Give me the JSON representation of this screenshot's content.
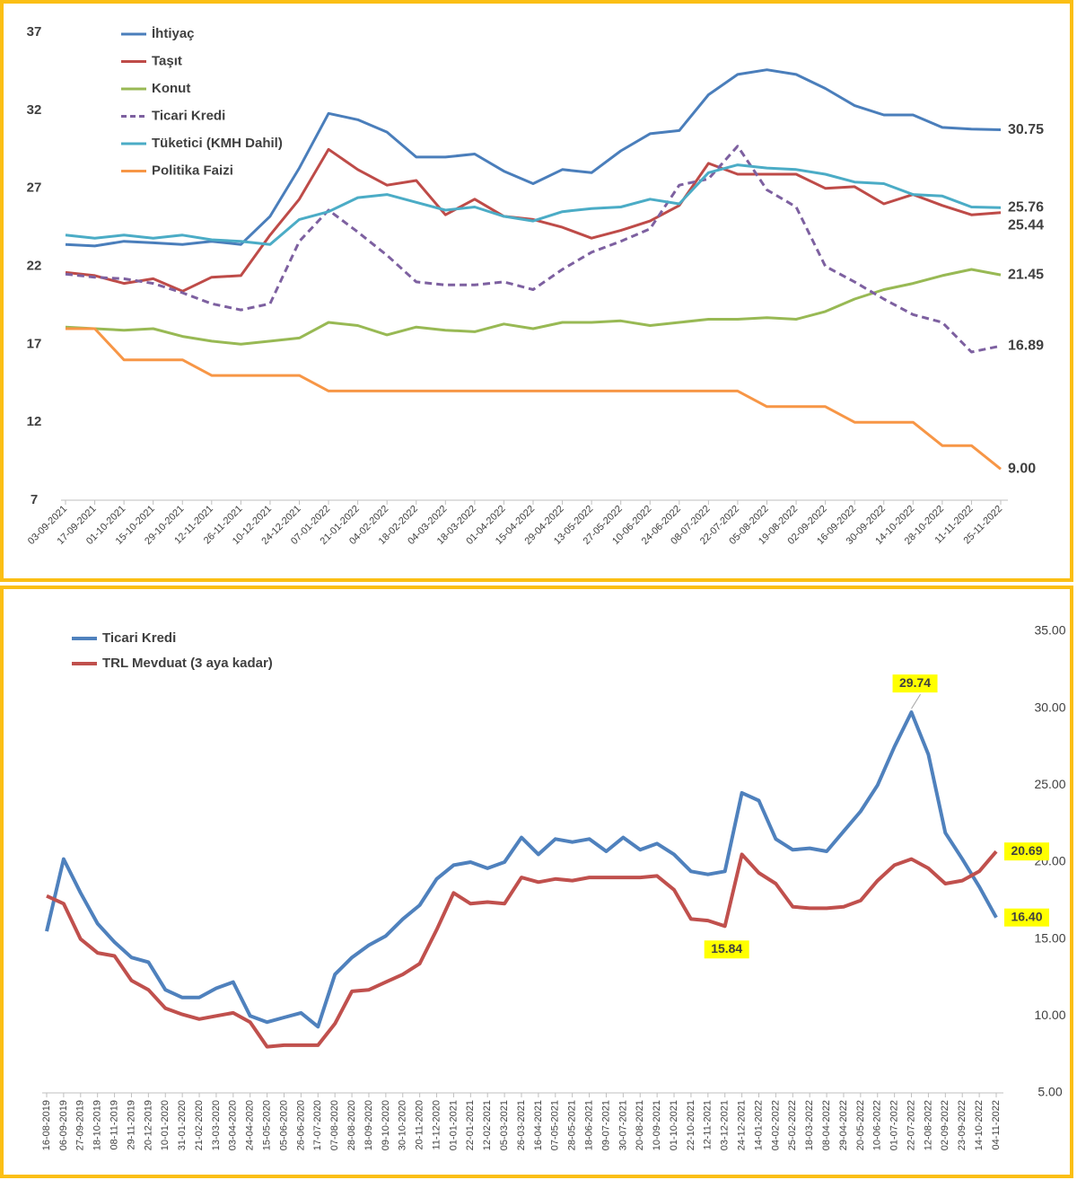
{
  "chart_data": [
    {
      "type": "line",
      "grid": false,
      "legend": "upper-left",
      "categories": [
        "03-09-2021",
        "17-09-2021",
        "01-10-2021",
        "15-10-2021",
        "29-10-2021",
        "12-11-2021",
        "26-11-2021",
        "10-12-2021",
        "24-12-2021",
        "07-01-2022",
        "21-01-2022",
        "04-02-2022",
        "18-02-2022",
        "04-03-2022",
        "18-03-2022",
        "01-04-2022",
        "15-04-2022",
        "29-04-2022",
        "13-05-2022",
        "27-05-2022",
        "10-06-2022",
        "24-06-2022",
        "08-07-2022",
        "22-07-2022",
        "05-08-2022",
        "19-08-2022",
        "02-09-2022",
        "16-09-2022",
        "30-09-2022",
        "14-10-2022",
        "28-10-2022",
        "11-11-2022",
        "25-11-2022"
      ],
      "ylim": [
        7,
        37
      ],
      "yticks": [
        7,
        12,
        17,
        22,
        27,
        32,
        37
      ],
      "series": [
        {
          "name": "İhtiyaç",
          "color": "#4a7ebb",
          "values": [
            23.4,
            23.3,
            23.6,
            23.5,
            23.4,
            23.6,
            23.4,
            25.2,
            28.3,
            31.8,
            31.4,
            30.6,
            29.0,
            29.0,
            29.2,
            28.1,
            27.3,
            28.2,
            28.0,
            29.4,
            30.5,
            30.7,
            33.0,
            34.3,
            34.6,
            34.3,
            33.4,
            32.3,
            31.7,
            31.7,
            30.9,
            30.8,
            30.75
          ],
          "value_labels": [
            null,
            null,
            null,
            null,
            null,
            null,
            null,
            null,
            null,
            null,
            null,
            null,
            null,
            null,
            null,
            null,
            null,
            null,
            null,
            null,
            null,
            null,
            null,
            null,
            null,
            null,
            null,
            null,
            null,
            null,
            null,
            null,
            "30.75"
          ]
        },
        {
          "name": "Taşıt",
          "color": "#be4b48",
          "values": [
            21.6,
            21.4,
            20.9,
            21.2,
            20.4,
            21.3,
            21.4,
            24.0,
            26.3,
            29.5,
            28.2,
            27.2,
            27.5,
            25.3,
            26.3,
            25.2,
            25.0,
            24.5,
            23.8,
            24.3,
            24.9,
            25.9,
            28.6,
            27.9,
            27.9,
            27.9,
            27.0,
            27.1,
            26.0,
            26.6,
            25.9,
            25.3,
            25.44
          ],
          "value_labels": [
            null,
            null,
            null,
            null,
            null,
            null,
            null,
            null,
            null,
            null,
            null,
            null,
            null,
            null,
            null,
            null,
            null,
            null,
            null,
            null,
            null,
            null,
            null,
            null,
            null,
            null,
            null,
            null,
            null,
            null,
            null,
            null,
            "25.44"
          ]
        },
        {
          "name": "Konut",
          "color": "#98b954",
          "values": [
            18.1,
            18.0,
            17.9,
            18.0,
            17.5,
            17.2,
            17.0,
            17.2,
            17.4,
            18.4,
            18.2,
            17.6,
            18.1,
            17.9,
            17.8,
            18.3,
            18.0,
            18.4,
            18.4,
            18.5,
            18.2,
            18.4,
            18.6,
            18.6,
            18.7,
            18.6,
            19.1,
            19.9,
            20.5,
            20.9,
            21.4,
            21.8,
            21.45
          ],
          "value_labels": [
            null,
            null,
            null,
            null,
            null,
            null,
            null,
            null,
            null,
            null,
            null,
            null,
            null,
            null,
            null,
            null,
            null,
            null,
            null,
            null,
            null,
            null,
            null,
            null,
            null,
            null,
            null,
            null,
            null,
            null,
            null,
            null,
            "21.45"
          ]
        },
        {
          "name": "Ticari Kredi",
          "color": "#7d60a0",
          "dashed": true,
          "values": [
            21.5,
            21.3,
            21.2,
            20.9,
            20.3,
            19.6,
            19.2,
            19.6,
            23.6,
            25.6,
            24.2,
            22.7,
            21.0,
            20.8,
            20.8,
            21.0,
            20.5,
            21.8,
            22.9,
            23.6,
            24.4,
            27.2,
            27.6,
            29.7,
            26.9,
            25.8,
            22.0,
            21.0,
            19.9,
            18.9,
            18.4,
            16.5,
            16.89
          ],
          "value_labels": [
            null,
            null,
            null,
            null,
            null,
            null,
            null,
            null,
            null,
            null,
            null,
            null,
            null,
            null,
            null,
            null,
            null,
            null,
            null,
            null,
            null,
            null,
            null,
            null,
            null,
            null,
            null,
            null,
            null,
            null,
            null,
            null,
            "16.89"
          ]
        },
        {
          "name": "Tüketici (KMH Dahil)",
          "color": "#4bacc6",
          "values": [
            24.0,
            23.8,
            24.0,
            23.8,
            24.0,
            23.7,
            23.6,
            23.4,
            25.0,
            25.5,
            26.4,
            26.6,
            26.1,
            25.6,
            25.8,
            25.2,
            24.9,
            25.5,
            25.7,
            25.8,
            26.3,
            26.0,
            28.0,
            28.5,
            28.3,
            28.2,
            27.9,
            27.4,
            27.3,
            26.6,
            26.5,
            25.8,
            25.76
          ],
          "value_labels": [
            null,
            null,
            null,
            null,
            null,
            null,
            null,
            null,
            null,
            null,
            null,
            null,
            null,
            null,
            null,
            null,
            null,
            null,
            null,
            null,
            null,
            null,
            null,
            null,
            null,
            null,
            null,
            null,
            null,
            null,
            null,
            null,
            "25.76"
          ]
        },
        {
          "name": "Politika Faizi",
          "color": "#f79646",
          "values": [
            18,
            18,
            16,
            16,
            16,
            15,
            15,
            15,
            15,
            14,
            14,
            14,
            14,
            14,
            14,
            14,
            14,
            14,
            14,
            14,
            14,
            14,
            14,
            14,
            13,
            13,
            13,
            12,
            12,
            12,
            10.5,
            10.5,
            9
          ],
          "value_labels": [
            null,
            null,
            null,
            null,
            null,
            null,
            null,
            null,
            null,
            null,
            null,
            null,
            null,
            null,
            null,
            null,
            null,
            null,
            null,
            null,
            null,
            null,
            null,
            null,
            null,
            null,
            null,
            null,
            null,
            null,
            null,
            null,
            "9.00"
          ]
        }
      ]
    },
    {
      "type": "line",
      "grid": false,
      "legend": "upper-left",
      "y_axis": "right",
      "categories": [
        "16-08-2019",
        "06-09-2019",
        "27-09-2019",
        "18-10-2019",
        "08-11-2019",
        "29-11-2019",
        "20-12-2019",
        "10-01-2020",
        "31-01-2020",
        "21-02-2020",
        "13-03-2020",
        "03-04-2020",
        "24-04-2020",
        "15-05-2020",
        "05-06-2020",
        "26-06-2020",
        "17-07-2020",
        "07-08-2020",
        "28-08-2020",
        "18-09-2020",
        "09-10-2020",
        "30-10-2020",
        "20-11-2020",
        "11-12-2020",
        "01-01-2021",
        "22-01-2021",
        "12-02-2021",
        "05-03-2021",
        "26-03-2021",
        "16-04-2021",
        "07-05-2021",
        "28-05-2021",
        "18-06-2021",
        "09-07-2021",
        "30-07-2021",
        "20-08-2021",
        "10-09-2021",
        "01-10-2021",
        "22-10-2021",
        "12-11-2021",
        "03-12-2021",
        "24-12-2021",
        "14-01-2022",
        "04-02-2022",
        "25-02-2022",
        "18-03-2022",
        "08-04-2022",
        "29-04-2022",
        "20-05-2022",
        "10-06-2022",
        "01-07-2022",
        "22-07-2022",
        "12-08-2022",
        "02-09-2022",
        "23-09-2022",
        "14-10-2022",
        "04-11-2022"
      ],
      "ylim": [
        5,
        35
      ],
      "yticks": [
        {
          "value": 5,
          "label": "5.00"
        },
        {
          "value": 10,
          "label": "10.00"
        },
        {
          "value": 15,
          "label": "15.00"
        },
        {
          "value": 20,
          "label": "20.00"
        },
        {
          "value": 25,
          "label": "25.00"
        },
        {
          "value": 30,
          "label": "30.00"
        },
        {
          "value": 35,
          "label": "35.00"
        }
      ],
      "series": [
        {
          "name": "Ticari Kredi",
          "color": "#4f81bd",
          "values": [
            15.5,
            20.2,
            18.0,
            16.0,
            14.8,
            13.8,
            13.5,
            11.7,
            11.2,
            11.2,
            11.8,
            12.2,
            10.0,
            9.6,
            9.9,
            10.2,
            9.3,
            12.7,
            13.8,
            14.6,
            15.2,
            16.3,
            17.2,
            18.9,
            19.8,
            20.0,
            19.6,
            20.0,
            21.6,
            20.5,
            21.5,
            21.3,
            21.5,
            20.7,
            21.6,
            20.8,
            21.2,
            20.5,
            19.4,
            19.2,
            19.4,
            24.5,
            24.0,
            21.5,
            20.8,
            20.9,
            20.7,
            22.0,
            23.3,
            25.0,
            27.5,
            29.74,
            27.0,
            21.9,
            20.2,
            18.4,
            16.4
          ],
          "value_labels": [
            null,
            null,
            null,
            null,
            null,
            null,
            null,
            null,
            null,
            null,
            null,
            null,
            null,
            null,
            null,
            null,
            null,
            null,
            null,
            null,
            null,
            null,
            null,
            null,
            null,
            null,
            null,
            null,
            null,
            null,
            null,
            null,
            null,
            null,
            null,
            null,
            null,
            null,
            null,
            null,
            null,
            null,
            null,
            null,
            null,
            null,
            null,
            null,
            null,
            null,
            null,
            "29.74",
            null,
            null,
            null,
            null,
            "16.40"
          ]
        },
        {
          "name": "TRL Mevduat (3 aya kadar)",
          "color": "#c0504d",
          "values": [
            17.8,
            17.3,
            15.0,
            14.1,
            13.9,
            12.3,
            11.7,
            10.5,
            10.1,
            9.8,
            10.0,
            10.2,
            9.6,
            8.0,
            8.1,
            8.1,
            8.1,
            9.5,
            11.6,
            11.7,
            12.2,
            12.7,
            13.4,
            15.6,
            18.0,
            17.3,
            17.4,
            17.3,
            19.0,
            18.7,
            18.9,
            18.8,
            19.0,
            19.0,
            19.0,
            19.0,
            19.1,
            18.2,
            16.3,
            16.2,
            15.84,
            20.5,
            19.3,
            18.6,
            17.1,
            17.0,
            17.0,
            17.1,
            17.5,
            18.8,
            19.8,
            20.2,
            19.6,
            18.6,
            18.8,
            19.4,
            20.69
          ],
          "value_labels": [
            null,
            null,
            null,
            null,
            null,
            null,
            null,
            null,
            null,
            null,
            null,
            null,
            null,
            null,
            null,
            null,
            null,
            null,
            null,
            null,
            null,
            null,
            null,
            null,
            null,
            null,
            null,
            null,
            null,
            null,
            null,
            null,
            null,
            null,
            null,
            null,
            null,
            null,
            null,
            null,
            "15.84",
            null,
            null,
            null,
            null,
            null,
            null,
            null,
            null,
            null,
            null,
            null,
            null,
            null,
            null,
            null,
            "20.69"
          ]
        }
      ]
    }
  ]
}
